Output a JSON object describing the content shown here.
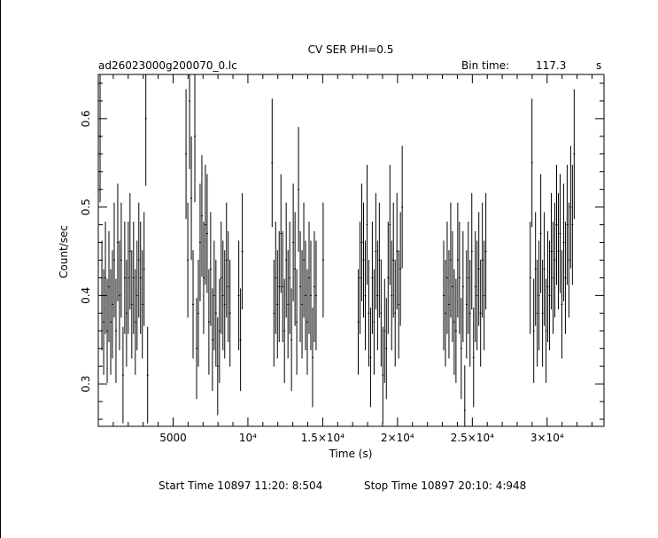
{
  "chart_data": {
    "type": "scatter",
    "title": "CV SER PHI=0.5",
    "file_label": "ad26023000g200070_0.lc",
    "bin_time_label": "Bin time:",
    "bin_time_value": "117.3",
    "bin_time_unit": "s",
    "xlabel": "Time (s)",
    "ylabel": "Count/sec",
    "xlim": [
      0,
      33800
    ],
    "ylim": [
      0.252,
      0.65
    ],
    "x_ticks": [
      {
        "value": 5000,
        "label": "5000"
      },
      {
        "value": 10000,
        "label": "10⁴"
      },
      {
        "value": 15000,
        "label": "1.5×10⁴"
      },
      {
        "value": 20000,
        "label": "2×10⁴"
      },
      {
        "value": 25000,
        "label": "2.5×10⁴"
      },
      {
        "value": 30000,
        "label": "3×10⁴"
      }
    ],
    "y_ticks": [
      {
        "value": 0.3,
        "label": "0.3"
      },
      {
        "value": 0.4,
        "label": "0.4"
      },
      {
        "value": 0.5,
        "label": "0.5"
      },
      {
        "value": 0.6,
        "label": "0.6"
      }
    ],
    "error_scale": 0.062,
    "series": [
      {
        "x": [
          120,
          240,
          359,
          476,
          594,
          711,
          829,
          946,
          1064,
          1181,
          1299,
          1416,
          1534,
          1651,
          1769,
          1886,
          2004,
          2121,
          2239,
          2356,
          2474,
          2591,
          2709,
          2826,
          2944,
          3061,
          3178,
          3296
        ],
        "y": [
          0.58,
          0.4,
          0.37,
          0.42,
          0.36,
          0.41,
          0.37,
          0.39,
          0.44,
          0.36,
          0.46,
          0.4,
          0.44,
          0.31,
          0.42,
          0.38,
          0.42,
          0.45,
          0.39,
          0.42,
          0.37,
          0.4,
          0.44,
          0.42,
          0.39,
          0.43,
          0.6,
          0.31
        ]
      },
      {
        "x": [
          5865,
          5983,
          6100,
          6218,
          6335,
          6453,
          6570,
          6688,
          6805,
          6923,
          7040,
          7158,
          7275,
          7393,
          7510,
          7628,
          7745,
          7863,
          7980,
          8098,
          8215,
          8333,
          8450,
          8568,
          8685,
          8803,
          9390,
          9508,
          9625
        ],
        "y": [
          0.56,
          0.44,
          0.62,
          0.51,
          0.39,
          0.58,
          0.34,
          0.38,
          0.46,
          0.49,
          0.42,
          0.48,
          0.47,
          0.37,
          0.43,
          0.35,
          0.4,
          0.38,
          0.32,
          0.36,
          0.42,
          0.4,
          0.39,
          0.44,
          0.41,
          0.38,
          0.4,
          0.35,
          0.45
        ]
      },
      {
        "x": [
          11620,
          11738,
          11855,
          11973,
          12090,
          12208,
          12325,
          12443,
          12560,
          12678,
          12795,
          12913,
          13030,
          13148,
          13265,
          13383,
          13500,
          13618,
          13735,
          13853,
          13970,
          14088,
          14205,
          14323,
          14440,
          14558,
          15030
        ],
        "y": [
          0.55,
          0.38,
          0.42,
          0.39,
          0.41,
          0.47,
          0.41,
          0.36,
          0.44,
          0.39,
          0.42,
          0.35,
          0.46,
          0.43,
          0.37,
          0.52,
          0.41,
          0.39,
          0.44,
          0.4,
          0.37,
          0.42,
          0.4,
          0.33,
          0.41,
          0.4,
          0.44
        ]
      },
      {
        "x": [
          17375,
          17493,
          17610,
          17728,
          17845,
          17963,
          18080,
          18198,
          18315,
          18433,
          18550,
          18668,
          18785,
          18903,
          19020,
          19138,
          19255,
          19373,
          19490,
          19608,
          19725,
          19843,
          19960,
          20078,
          20195,
          20313
        ],
        "y": [
          0.37,
          0.42,
          0.46,
          0.44,
          0.4,
          0.48,
          0.38,
          0.33,
          0.42,
          0.37,
          0.45,
          0.4,
          0.44,
          0.38,
          0.31,
          0.36,
          0.34,
          0.42,
          0.48,
          0.4,
          0.44,
          0.38,
          0.45,
          0.39,
          0.43,
          0.5
        ]
      },
      {
        "x": [
          23085,
          23203,
          23320,
          23438,
          23555,
          23673,
          23790,
          23908,
          24025,
          24143,
          24260,
          24378,
          24495,
          24613,
          24730,
          24848,
          24965,
          25083,
          25200,
          25318,
          25435,
          25553,
          25670,
          25788,
          25905
        ],
        "y": [
          0.4,
          0.38,
          0.42,
          0.39,
          0.44,
          0.41,
          0.37,
          0.36,
          0.44,
          0.42,
          0.34,
          0.41,
          0.27,
          0.39,
          0.42,
          0.38,
          0.45,
          0.33,
          0.41,
          0.4,
          0.43,
          0.38,
          0.44,
          0.4,
          0.45
        ]
      },
      {
        "x": [
          28870,
          28988,
          29105,
          29223,
          29340,
          29458,
          29575,
          29693,
          29810,
          29928,
          30045,
          30163,
          30280,
          30398,
          30515,
          30633,
          30750,
          30868,
          30985,
          31103,
          31220,
          31338,
          31455,
          31573,
          31690,
          31808
        ],
        "y": [
          0.42,
          0.55,
          0.36,
          0.43,
          0.38,
          0.4,
          0.47,
          0.38,
          0.43,
          0.36,
          0.41,
          0.4,
          0.45,
          0.42,
          0.44,
          0.48,
          0.45,
          0.47,
          0.39,
          0.46,
          0.42,
          0.48,
          0.44,
          0.5,
          0.48,
          0.56
        ]
      }
    ]
  },
  "footer": {
    "start_time": "Start Time 10897 11:20: 8:504",
    "stop_time": "Stop Time 10897 20:10: 4:948"
  }
}
